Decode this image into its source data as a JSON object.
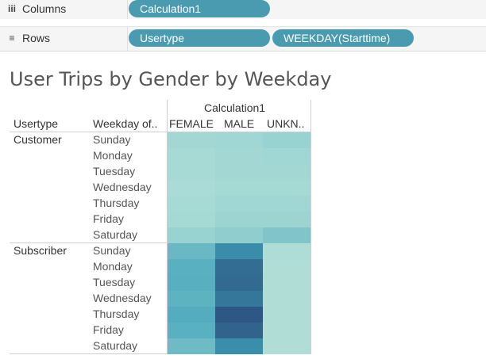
{
  "shelves": {
    "columns": {
      "label": "Columns",
      "icon": "columns-icon",
      "pills": [
        "Calculation1"
      ]
    },
    "rows": {
      "label": "Rows",
      "icon": "rows-icon",
      "pills": [
        "Usertype",
        "WEEKDAY(Starttime)"
      ]
    }
  },
  "viz": {
    "title": "User Trips by Gender by Weekday",
    "column_group_header": "Calculation1",
    "row_headers": [
      "Usertype",
      "Weekday of.."
    ],
    "columns": [
      "FEMALE",
      "MALE",
      "UNKN.."
    ],
    "groups": [
      {
        "name": "Customer",
        "days": [
          "Sunday",
          "Monday",
          "Tuesday",
          "Wednesday",
          "Thursday",
          "Friday",
          "Saturday"
        ]
      },
      {
        "name": "Subscriber",
        "days": [
          "Sunday",
          "Monday",
          "Tuesday",
          "Wednesday",
          "Thursday",
          "Friday",
          "Saturday"
        ]
      }
    ]
  },
  "chart_data": {
    "type": "heatmap",
    "title": "User Trips by Gender by Weekday",
    "x": [
      "FEMALE",
      "MALE",
      "UNKN.."
    ],
    "y_groups": [
      "Customer",
      "Subscriber"
    ],
    "y": [
      "Sunday",
      "Monday",
      "Tuesday",
      "Wednesday",
      "Thursday",
      "Friday",
      "Saturday"
    ],
    "values": [
      [
        [
          0.12,
          0.13,
          0.16
        ],
        [
          0.1,
          0.12,
          0.13
        ],
        [
          0.1,
          0.12,
          0.12
        ],
        [
          0.09,
          0.11,
          0.11
        ],
        [
          0.1,
          0.13,
          0.13
        ],
        [
          0.11,
          0.14,
          0.14
        ],
        [
          0.16,
          0.19,
          0.25
        ]
      ],
      [
        [
          0.34,
          0.63,
          0.08
        ],
        [
          0.4,
          0.82,
          0.07
        ],
        [
          0.41,
          0.84,
          0.07
        ],
        [
          0.38,
          0.76,
          0.07
        ],
        [
          0.42,
          0.95,
          0.07
        ],
        [
          0.4,
          0.88,
          0.07
        ],
        [
          0.32,
          0.62,
          0.07
        ]
      ]
    ],
    "color_low": "#c2e8dc",
    "color_high": "#2c4f7f",
    "color_mid": "#3fa2b9",
    "legend": "none"
  }
}
